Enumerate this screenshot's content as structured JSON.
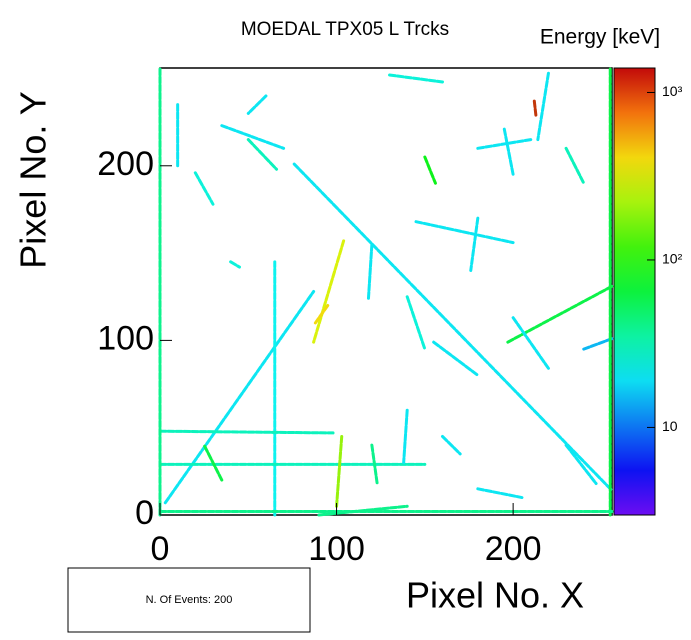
{
  "chart_data": {
    "type": "tracks",
    "title": "MOEDAL TPX05 L Trcks",
    "x_label": "Pixel No. X",
    "y_label": "Pixel No. Y",
    "colorbar_label": "Energy [keV]",
    "legend_text": "N. Of Events: 200",
    "xlim": [
      0,
      256
    ],
    "ylim": [
      0,
      256
    ],
    "xticks": [
      0,
      100,
      200
    ],
    "yticks": [
      0,
      100,
      200
    ],
    "zlim": [
      3,
      1400
    ],
    "log_z": true,
    "zticks": [
      10,
      {
        "value": 100,
        "label": "10²"
      },
      {
        "value": 1000,
        "label": "10³"
      }
    ],
    "tracks": [
      {
        "x": [
          76,
          256
        ],
        "y": [
          201,
          14
        ],
        "energy": 20
      },
      {
        "x": [
          3,
          87
        ],
        "y": [
          7,
          128
        ],
        "energy": 20
      },
      {
        "x": [
          65,
          65
        ],
        "y": [
          0,
          145
        ],
        "energy": 22
      },
      {
        "x": [
          0,
          98
        ],
        "y": [
          48,
          47
        ],
        "energy": 30
      },
      {
        "x": [
          0,
          150
        ],
        "y": [
          29,
          29
        ],
        "energy": 30
      },
      {
        "x": [
          197,
          256
        ],
        "y": [
          99,
          131
        ],
        "energy": 60
      },
      {
        "x": [
          145,
          200
        ],
        "y": [
          168,
          156
        ],
        "energy": 20
      },
      {
        "x": [
          104,
          87
        ],
        "y": [
          157,
          99
        ],
        "energy": 300
      },
      {
        "x": [
          212,
          213
        ],
        "y": [
          237,
          228
        ],
        "energy": 1000
      },
      {
        "x": [
          35,
          70
        ],
        "y": [
          223,
          210
        ],
        "energy": 20
      },
      {
        "x": [
          10,
          10
        ],
        "y": [
          235,
          200
        ],
        "energy": 20
      },
      {
        "x": [
          20,
          30
        ],
        "y": [
          196,
          178
        ],
        "energy": 25
      },
      {
        "x": [
          90,
          140
        ],
        "y": [
          0,
          5
        ],
        "energy": 40
      },
      {
        "x": [
          100,
          103
        ],
        "y": [
          5,
          46
        ],
        "energy": 200
      },
      {
        "x": [
          120,
          118
        ],
        "y": [
          155,
          123
        ],
        "energy": 20
      },
      {
        "x": [
          140,
          150
        ],
        "y": [
          125,
          95
        ],
        "energy": 25
      },
      {
        "x": [
          155,
          180
        ],
        "y": [
          99,
          80
        ],
        "energy": 20
      },
      {
        "x": [
          200,
          220
        ],
        "y": [
          113,
          84
        ],
        "energy": 20
      },
      {
        "x": [
          180,
          176
        ],
        "y": [
          170,
          140
        ],
        "energy": 20
      },
      {
        "x": [
          195,
          200
        ],
        "y": [
          221,
          195
        ],
        "energy": 20
      },
      {
        "x": [
          220,
          214
        ],
        "y": [
          253,
          215
        ],
        "energy": 20
      },
      {
        "x": [
          230,
          240
        ],
        "y": [
          210,
          190
        ],
        "energy": 30
      },
      {
        "x": [
          240,
          256
        ],
        "y": [
          95,
          101
        ],
        "energy": 15
      },
      {
        "x": [
          160,
          170
        ],
        "y": [
          45,
          35
        ],
        "energy": 20
      },
      {
        "x": [
          60,
          50
        ],
        "y": [
          240,
          230
        ],
        "energy": 20
      },
      {
        "x": [
          40,
          45
        ],
        "y": [
          145,
          142
        ],
        "energy": 25
      },
      {
        "x": [
          230,
          247
        ],
        "y": [
          40,
          18
        ],
        "energy": 20
      },
      {
        "x": [
          180,
          205
        ],
        "y": [
          15,
          10
        ],
        "energy": 20
      },
      {
        "x": [
          120,
          123
        ],
        "y": [
          40,
          18
        ],
        "energy": 40
      },
      {
        "x": [
          140,
          138
        ],
        "y": [
          60,
          30
        ],
        "energy": 20
      },
      {
        "x": [
          50,
          66
        ],
        "y": [
          215,
          198
        ],
        "energy": 30
      },
      {
        "x": [
          180,
          210
        ],
        "y": [
          210,
          215
        ],
        "energy": 20
      },
      {
        "x": [
          255,
          255
        ],
        "y": [
          0,
          256
        ],
        "energy": 60
      },
      {
        "x": [
          0,
          0
        ],
        "y": [
          0,
          256
        ],
        "energy": 40
      },
      {
        "x": [
          0,
          256
        ],
        "y": [
          2,
          2
        ],
        "energy": 40
      },
      {
        "x": [
          35,
          25
        ],
        "y": [
          20,
          40
        ],
        "energy": 60
      },
      {
        "x": [
          95,
          88
        ],
        "y": [
          120,
          110
        ],
        "energy": 400
      },
      {
        "x": [
          130,
          160
        ],
        "y": [
          252,
          248
        ],
        "energy": 25
      },
      {
        "x": [
          150,
          156
        ],
        "y": [
          205,
          190
        ],
        "energy": 80
      }
    ]
  }
}
